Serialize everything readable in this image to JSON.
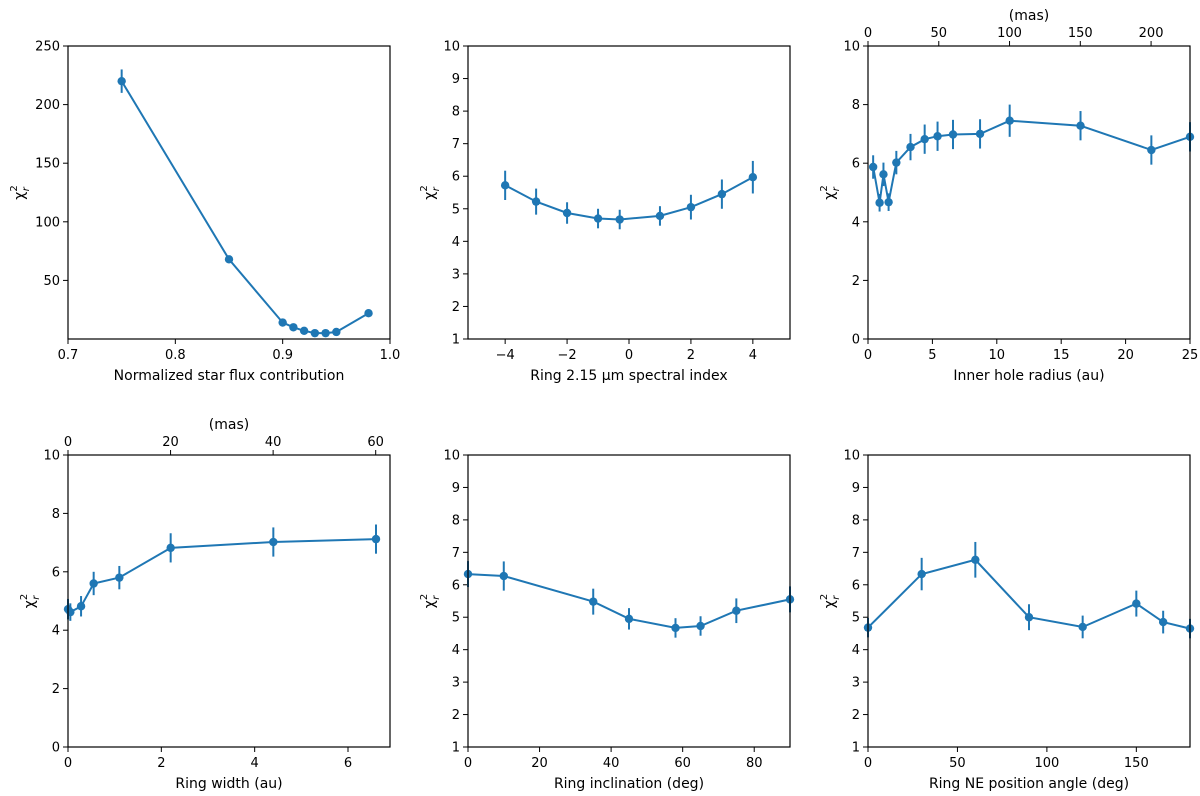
{
  "chart_data": [
    {
      "type": "line",
      "id": "p1",
      "xlabel": "Normalized star flux contribution",
      "ylabel_base": "χ",
      "ylabel_sup": "2",
      "ylabel_sub": "r",
      "xlim": [
        0.7,
        1.0
      ],
      "ylim": [
        0,
        250
      ],
      "xticks": [
        0.7,
        0.8,
        0.9,
        1.0
      ],
      "xtick_labels": [
        "0.7",
        "0.8",
        "0.9",
        "1.0"
      ],
      "yticks": [
        50,
        100,
        150,
        200,
        250
      ],
      "ytick_labels": [
        "50",
        "100",
        "150",
        "200",
        "250"
      ],
      "x": [
        0.75,
        0.85,
        0.9,
        0.91,
        0.92,
        0.93,
        0.94,
        0.95,
        0.98
      ],
      "y": [
        220,
        68,
        14,
        10,
        7,
        5,
        5,
        6,
        22
      ],
      "yerr": [
        10,
        3,
        2,
        1.5,
        1,
        1,
        1,
        1,
        2
      ]
    },
    {
      "type": "line",
      "id": "p2",
      "xlabel": "Ring 2.15 μm spectral index",
      "ylabel_base": "χ",
      "ylabel_sup": "2",
      "ylabel_sub": "r",
      "xlim": [
        -5.2,
        5.2
      ],
      "ylim": [
        1,
        10
      ],
      "xticks": [
        -4,
        -2,
        0,
        2,
        4
      ],
      "xtick_labels": [
        "−4",
        "−2",
        "0",
        "2",
        "4"
      ],
      "yticks": [
        1,
        2,
        3,
        4,
        5,
        6,
        7,
        8,
        9,
        10
      ],
      "ytick_labels": [
        "1",
        "2",
        "3",
        "4",
        "5",
        "6",
        "7",
        "8",
        "9",
        "10"
      ],
      "x": [
        -4,
        -3,
        -2,
        -1,
        -0.3,
        1,
        2,
        3,
        4
      ],
      "y": [
        5.72,
        5.22,
        4.87,
        4.7,
        4.67,
        4.78,
        5.05,
        5.45,
        5.97
      ],
      "yerr": [
        0.45,
        0.4,
        0.33,
        0.3,
        0.3,
        0.3,
        0.38,
        0.45,
        0.5
      ]
    },
    {
      "type": "line",
      "id": "p3",
      "xlabel": "Inner hole radius (au)",
      "ylabel_base": "χ",
      "ylabel_sup": "2",
      "ylabel_sub": "r",
      "xlim": [
        0,
        25
      ],
      "ylim": [
        0,
        10
      ],
      "xticks": [
        0,
        5,
        10,
        15,
        20,
        25
      ],
      "xtick_labels": [
        "0",
        "5",
        "10",
        "15",
        "20",
        "25"
      ],
      "yticks": [
        0,
        2,
        4,
        6,
        8,
        10
      ],
      "ytick_labels": [
        "0",
        "2",
        "4",
        "6",
        "8",
        "10"
      ],
      "x": [
        0.4,
        0.9,
        1.2,
        1.6,
        2.2,
        3.3,
        4.4,
        5.4,
        6.6,
        8.7,
        11,
        16.5,
        22,
        25
      ],
      "y": [
        5.87,
        4.65,
        5.62,
        4.67,
        6.02,
        6.55,
        6.82,
        6.92,
        6.98,
        7.0,
        7.45,
        7.28,
        6.45,
        6.9
      ],
      "yerr": [
        0.4,
        0.3,
        0.4,
        0.3,
        0.4,
        0.45,
        0.5,
        0.5,
        0.5,
        0.5,
        0.55,
        0.5,
        0.5,
        0.5
      ],
      "top_axis": {
        "label": "(mas)",
        "ticks": [
          0,
          50,
          100,
          150,
          200
        ],
        "tick_labels": [
          "0",
          "50",
          "100",
          "150",
          "200"
        ],
        "scale": 9.1
      }
    },
    {
      "type": "line",
      "id": "p4",
      "xlabel": "Ring width (au)",
      "ylabel_base": "χ",
      "ylabel_sup": "2",
      "ylabel_sub": "r",
      "xlim": [
        0,
        6.9
      ],
      "ylim": [
        0,
        10
      ],
      "xticks": [
        0,
        2,
        4,
        6
      ],
      "xtick_labels": [
        "0",
        "2",
        "4",
        "6"
      ],
      "yticks": [
        0,
        2,
        4,
        6,
        8,
        10
      ],
      "ytick_labels": [
        "0",
        "2",
        "4",
        "6",
        "8",
        "10"
      ],
      "x": [
        0,
        0.05,
        0.28,
        0.55,
        1.1,
        2.2,
        4.4,
        6.6
      ],
      "y": [
        4.72,
        4.62,
        4.82,
        5.6,
        5.8,
        6.82,
        7.02,
        7.12
      ],
      "yerr": [
        0.35,
        0.3,
        0.35,
        0.4,
        0.4,
        0.5,
        0.5,
        0.5
      ],
      "top_axis": {
        "label": "(mas)",
        "ticks": [
          0,
          20,
          40,
          60
        ],
        "tick_labels": [
          "0",
          "20",
          "40",
          "60"
        ],
        "scale": 9.1
      }
    },
    {
      "type": "line",
      "id": "p5",
      "xlabel": "Ring inclination (deg)",
      "ylabel_base": "χ",
      "ylabel_sup": "2",
      "ylabel_sub": "r",
      "xlim": [
        0,
        90
      ],
      "ylim": [
        1,
        10
      ],
      "xticks": [
        0,
        20,
        40,
        60,
        80
      ],
      "xtick_labels": [
        "0",
        "20",
        "40",
        "60",
        "80"
      ],
      "yticks": [
        1,
        2,
        3,
        4,
        5,
        6,
        7,
        8,
        9,
        10
      ],
      "ytick_labels": [
        "1",
        "2",
        "3",
        "4",
        "5",
        "6",
        "7",
        "8",
        "9",
        "10"
      ],
      "x": [
        0,
        10,
        35,
        45,
        58,
        65,
        75,
        90
      ],
      "y": [
        6.33,
        6.27,
        5.48,
        4.95,
        4.67,
        4.73,
        5.2,
        5.55
      ],
      "yerr": [
        0.4,
        0.45,
        0.4,
        0.33,
        0.3,
        0.3,
        0.38,
        0.4
      ]
    },
    {
      "type": "line",
      "id": "p6",
      "xlabel": "Ring NE position angle (deg)",
      "ylabel_base": "χ",
      "ylabel_sup": "2",
      "ylabel_sub": "r",
      "xlim": [
        0,
        180
      ],
      "ylim": [
        1,
        10
      ],
      "xticks": [
        0,
        50,
        100,
        150
      ],
      "xtick_labels": [
        "0",
        "50",
        "100",
        "150"
      ],
      "yticks": [
        1,
        2,
        3,
        4,
        5,
        6,
        7,
        8,
        9,
        10
      ],
      "ytick_labels": [
        "1",
        "2",
        "3",
        "4",
        "5",
        "6",
        "7",
        "8",
        "9",
        "10"
      ],
      "x": [
        0,
        30,
        60,
        90,
        120,
        150,
        165,
        180
      ],
      "y": [
        4.68,
        6.33,
        6.77,
        5.0,
        4.7,
        5.42,
        4.85,
        4.65
      ],
      "yerr": [
        0.3,
        0.5,
        0.55,
        0.4,
        0.35,
        0.4,
        0.35,
        0.3
      ]
    }
  ]
}
